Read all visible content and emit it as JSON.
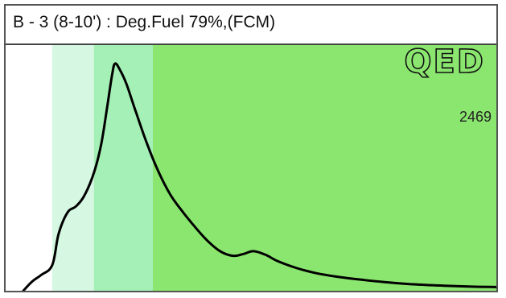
{
  "title": "B - 3 (8-10') : Deg.Fuel 79%,(FCM)",
  "logo": "QED",
  "colors": {
    "white_region": "#ffffff",
    "band_1": "#d6f7e1",
    "band_2": "#a5f0b6",
    "band_3": "#8be66f",
    "curve": "#000000",
    "logo_fill": "#8be66f",
    "logo_stroke": "#111111"
  },
  "chart_data": {
    "type": "line",
    "peak_label": "2469",
    "xlabel": "",
    "ylabel": "",
    "xlim": [
      0,
      100
    ],
    "ylim": [
      0,
      2600
    ],
    "grid": false,
    "bands": [
      {
        "from": 0,
        "to": 9.5,
        "color": "#ffffff"
      },
      {
        "from": 9.5,
        "to": 18,
        "color": "#d6f7e1"
      },
      {
        "from": 18,
        "to": 30,
        "color": "#a5f0b6"
      },
      {
        "from": 30,
        "to": 100,
        "color": "#8be66f"
      }
    ],
    "series": [
      {
        "points": [
          [
            3.6,
            0
          ],
          [
            5.4,
            100
          ],
          [
            7.2,
            170
          ],
          [
            9.5,
            280
          ],
          [
            10.8,
            620
          ],
          [
            12.6,
            850
          ],
          [
            14.4,
            920
          ],
          [
            16.2,
            1050
          ],
          [
            18.1,
            1300
          ],
          [
            19.5,
            1600
          ],
          [
            20.7,
            2000
          ],
          [
            21.7,
            2350
          ],
          [
            22.3,
            2469
          ],
          [
            23.3,
            2400
          ],
          [
            24.6,
            2250
          ],
          [
            26.5,
            1950
          ],
          [
            28.8,
            1600
          ],
          [
            31.1,
            1300
          ],
          [
            33.5,
            1050
          ],
          [
            36.2,
            850
          ],
          [
            38.8,
            680
          ],
          [
            41.2,
            540
          ],
          [
            43.7,
            430
          ],
          [
            46.3,
            380
          ],
          [
            48.5,
            400
          ],
          [
            50.5,
            430
          ],
          [
            53.0,
            390
          ],
          [
            55.5,
            320
          ],
          [
            59.4,
            245
          ],
          [
            63.4,
            190
          ],
          [
            67.9,
            150
          ],
          [
            72.5,
            120
          ],
          [
            77.0,
            95
          ],
          [
            83.1,
            70
          ],
          [
            89.3,
            55
          ],
          [
            95.0,
            45
          ],
          [
            100.0,
            40
          ]
        ]
      }
    ]
  }
}
